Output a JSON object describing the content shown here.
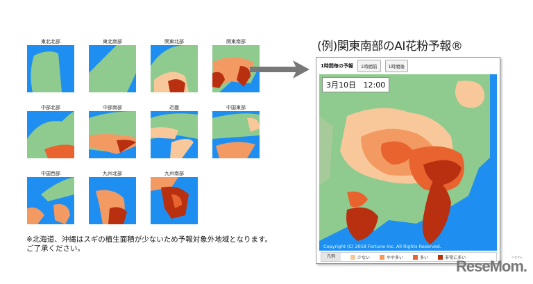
{
  "thumbnails": [
    {
      "label": "東北北部"
    },
    {
      "label": "東北南部"
    },
    {
      "label": "関東北部"
    },
    {
      "label": "関東南部"
    },
    {
      "label": "中部北部"
    },
    {
      "label": "中部南部"
    },
    {
      "label": "近畿"
    },
    {
      "label": "中国東部"
    },
    {
      "label": "中国西部"
    },
    {
      "label": "九州北部"
    },
    {
      "label": "九州南部"
    }
  ],
  "note": {
    "line1": "※北海道、沖縄はスギの植生面積が少ないため予報対象外地域となります。",
    "line2": "ご了承ください。"
  },
  "example_title": "(例)関東南部のAI花粉予報®",
  "panel": {
    "toolbar_title": "1時間毎の予報",
    "prev_button": "1時間前",
    "next_button": "1時間後",
    "date": "3月10日",
    "time": "12:00",
    "copyright": "Copyright (C) 2018 Fortune Inc. All Rights Reserved.",
    "legend": {
      "header": "凡例",
      "items": [
        {
          "label": "少ない",
          "color": "#f8c89a"
        },
        {
          "label": "やや多い",
          "color": "#f39a62"
        },
        {
          "label": "多い",
          "color": "#e8632e"
        },
        {
          "label": "非常に多い",
          "color": "#b8300f"
        }
      ]
    }
  },
  "colors": {
    "sea": "#1e8ff0",
    "land": "#8fcb8f"
  },
  "logo": {
    "text": "ReseMom",
    "ruby": "リセマム"
  }
}
